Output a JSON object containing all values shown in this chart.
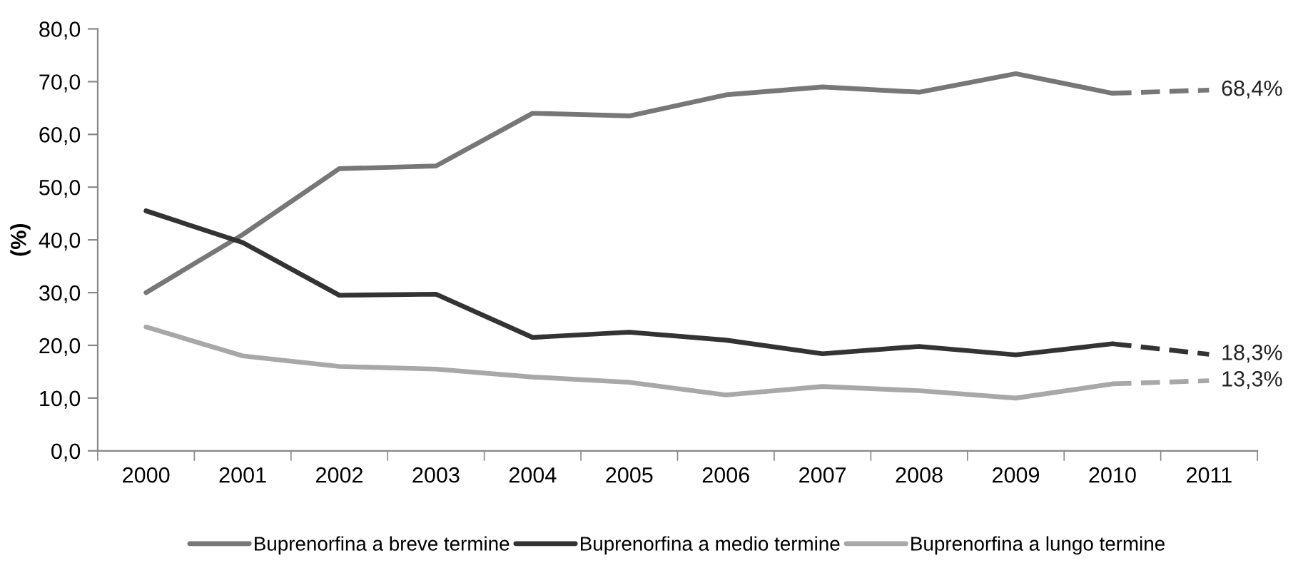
{
  "chart_data": {
    "type": "line",
    "ylabel": "(%)",
    "categories": [
      "2000",
      "2001",
      "2002",
      "2003",
      "2004",
      "2005",
      "2006",
      "2007",
      "2008",
      "2009",
      "2010",
      "2011"
    ],
    "ylim": [
      0,
      80
    ],
    "yticks": [
      {
        "value": 0,
        "label": "0,0"
      },
      {
        "value": 10,
        "label": "10,0"
      },
      {
        "value": 20,
        "label": "20,0"
      },
      {
        "value": 30,
        "label": "30,0"
      },
      {
        "value": 40,
        "label": "40,0"
      },
      {
        "value": 50,
        "label": "50,0"
      },
      {
        "value": 60,
        "label": "60,0"
      },
      {
        "value": 70,
        "label": "70,0"
      },
      {
        "value": 80,
        "label": "80,0"
      }
    ],
    "grid": false,
    "legend": "bottom",
    "marker": "none",
    "series": [
      {
        "name": "Buprenorfina a breve termine",
        "color": "#777777",
        "line_style": "solid",
        "values": [
          30.0,
          41.0,
          53.5,
          54.0,
          64.0,
          63.5,
          67.5,
          69.0,
          68.0,
          71.5,
          67.8,
          null
        ]
      },
      {
        "name": "Buprenorfina a medio termine",
        "color": "#333333",
        "line_style": "solid",
        "values": [
          45.5,
          39.5,
          29.5,
          29.7,
          21.5,
          22.5,
          21.0,
          18.4,
          19.8,
          18.2,
          20.3,
          null
        ]
      },
      {
        "name": "Buprenorfina a lungo termine",
        "color": "#a8a8a8",
        "line_style": "solid",
        "values": [
          23.5,
          18.0,
          16.0,
          15.5,
          14.0,
          13.0,
          10.6,
          12.2,
          11.4,
          10.0,
          12.7,
          null
        ]
      },
      {
        "color": "#777777",
        "line_style": "dashed",
        "values": [
          null,
          null,
          null,
          null,
          null,
          null,
          null,
          null,
          null,
          null,
          67.8,
          68.4
        ],
        "value_labels": [
          null,
          null,
          null,
          null,
          null,
          null,
          null,
          null,
          null,
          null,
          null,
          "68,4%"
        ]
      },
      {
        "color": "#333333",
        "line_style": "dashed",
        "values": [
          null,
          null,
          null,
          null,
          null,
          null,
          null,
          null,
          null,
          null,
          20.3,
          18.3
        ],
        "value_labels": [
          null,
          null,
          null,
          null,
          null,
          null,
          null,
          null,
          null,
          null,
          null,
          "18,3%"
        ]
      },
      {
        "color": "#a8a8a8",
        "line_style": "dashed",
        "values": [
          null,
          null,
          null,
          null,
          null,
          null,
          null,
          null,
          null,
          null,
          12.7,
          13.3
        ],
        "value_labels": [
          null,
          null,
          null,
          null,
          null,
          null,
          null,
          null,
          null,
          null,
          null,
          "13,3%"
        ]
      }
    ]
  }
}
